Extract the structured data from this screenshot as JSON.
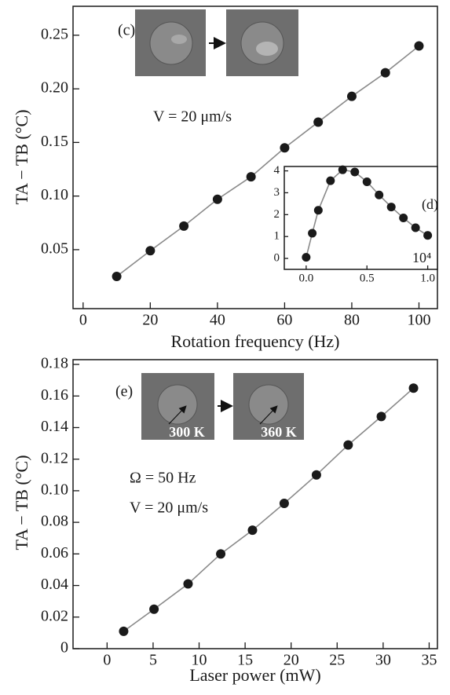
{
  "chart_data": [
    {
      "type": "line",
      "x": [
        10,
        20,
        30,
        40,
        50,
        60,
        70,
        80,
        90,
        100
      ],
      "values": [
        0.025,
        0.049,
        0.072,
        0.097,
        0.118,
        0.145,
        0.169,
        0.193,
        0.215,
        0.24
      ],
      "xlim": [
        -3,
        105.5
      ],
      "ylim": [
        -0.005,
        0.277
      ],
      "xticks": [
        0,
        20,
        40,
        60,
        80,
        100
      ],
      "yticks": [
        0.05,
        {
          "value": 0.1,
          "label": "0.10"
        },
        0.15,
        {
          "value": 0.2,
          "label": "0.20"
        },
        0.25
      ],
      "x_label": "Rotation frequency  (Hz)",
      "y_label": "TA − TB (°C)",
      "annotations": [
        "(c)",
        "V = 20 μm/s"
      ],
      "color": "#1a1a1a",
      "line_color": "#8a8a8a"
    },
    {
      "type": "line",
      "x": [
        0,
        0.05,
        0.1,
        0.2,
        0.3,
        0.4,
        0.5,
        0.6,
        0.7,
        0.8,
        0.9,
        1.0
      ],
      "values": [
        0.05,
        1.15,
        2.2,
        3.55,
        4.05,
        3.95,
        3.5,
        2.9,
        2.35,
        1.85,
        1.4,
        1.05
      ],
      "xlim": [
        -0.18,
        1.08
      ],
      "ylim": [
        -0.5,
        4.2
      ],
      "xticks": [
        {
          "value": 0,
          "label": "0.0"
        },
        0.5,
        {
          "value": 1,
          "label": "1.0"
        }
      ],
      "yticks": [
        0,
        1,
        2,
        3,
        4
      ],
      "annotations": [
        "(d)",
        "10⁴"
      ],
      "color": "#1a1a1a",
      "line_color": "#8a8a8a"
    },
    {
      "type": "line",
      "x": [
        1.8,
        5.1,
        8.8,
        12.35,
        15.8,
        19.25,
        22.75,
        26.2,
        29.8,
        33.3
      ],
      "values": [
        0.011,
        0.025,
        0.041,
        0.06,
        0.075,
        0.092,
        0.11,
        0.129,
        0.147,
        0.165
      ],
      "xlim": [
        -3.7,
        35.9
      ],
      "ylim": [
        0,
        0.183
      ],
      "xticks": [
        0,
        5,
        10,
        15,
        20,
        25,
        30,
        35
      ],
      "yticks": [
        0,
        0.02,
        0.04,
        0.06,
        0.08,
        {
          "value": 0.1,
          "label": "0.10"
        },
        0.12,
        0.14,
        0.16,
        0.18
      ],
      "x_label": "Laser power  (mW)",
      "y_label": "TA − TB (°C)",
      "annotations": [
        "(e)",
        "Ω = 50 Hz",
        "V = 20 μm/s",
        "300 K",
        "360 K"
      ],
      "color": "#1a1a1a",
      "line_color": "#8a8a8a"
    }
  ]
}
